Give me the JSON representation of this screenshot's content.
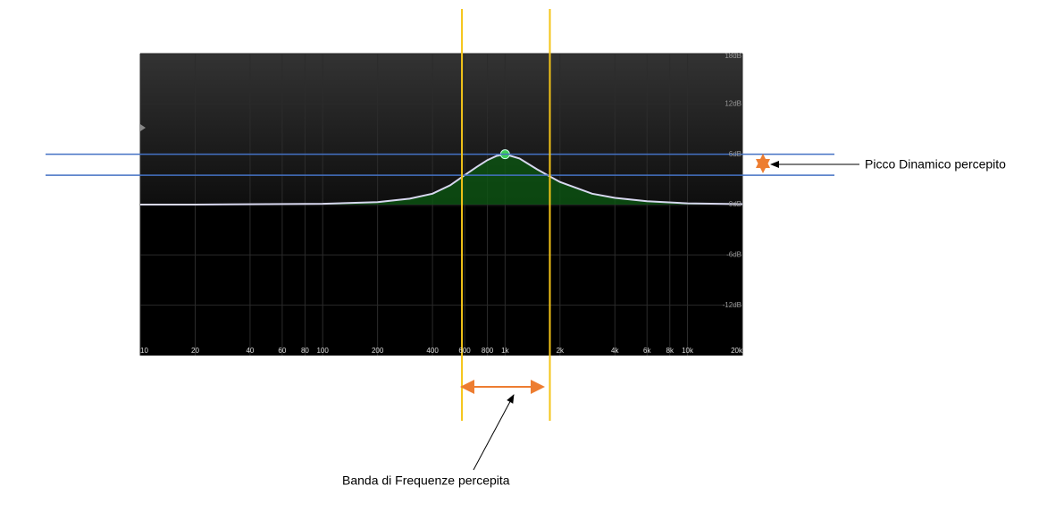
{
  "chart_data": {
    "type": "line",
    "xscale": "log",
    "x": [
      10,
      20,
      50,
      100,
      200,
      300,
      400,
      500,
      600,
      700,
      800,
      900,
      1000,
      1200,
      1500,
      2000,
      3000,
      4000,
      6000,
      10000,
      20000
    ],
    "series": [
      {
        "color": "#d8d8f0",
        "fill": "#0b5a12",
        "values": [
          0,
          0,
          0.05,
          0.1,
          0.3,
          0.7,
          1.3,
          2.3,
          3.5,
          4.5,
          5.3,
          5.8,
          6,
          5.5,
          4.2,
          2.7,
          1.3,
          0.8,
          0.4,
          0.15,
          0.05
        ]
      }
    ],
    "peak": {
      "x": 1000,
      "value": 6,
      "color": "#3fcf5a"
    },
    "xlim": [
      10,
      20000
    ],
    "ylim": [
      -18,
      18
    ],
    "xticks": [
      10,
      20,
      40,
      60,
      80,
      100,
      200,
      400,
      600,
      800,
      {
        "value": 1000,
        "label": "1k"
      },
      {
        "value": 2000,
        "label": "2k"
      },
      {
        "value": 4000,
        "label": "4k"
      },
      {
        "value": 6000,
        "label": "6k"
      },
      {
        "value": 8000,
        "label": "8k"
      },
      {
        "value": 10000,
        "label": "10k"
      },
      {
        "value": 20000,
        "label": "20k"
      }
    ],
    "yticks": [
      {
        "value": 18,
        "label": "18dB"
      },
      {
        "value": 12,
        "label": "12dB"
      },
      {
        "value": 6,
        "label": "6dB"
      },
      {
        "value": 0,
        "label": "0dB"
      },
      {
        "value": -6,
        "label": "-6dB"
      },
      {
        "value": -12,
        "label": "-12dB"
      }
    ],
    "grid": true,
    "vlines": {
      "color": "#f5c518",
      "values": [
        580,
        1760
      ]
    },
    "hlines": {
      "color": "#4472c4",
      "values": [
        6,
        3.5
      ]
    },
    "annotations": [
      "Picco Dinamico percepito",
      "Banda di Frequenze percepita"
    ]
  }
}
